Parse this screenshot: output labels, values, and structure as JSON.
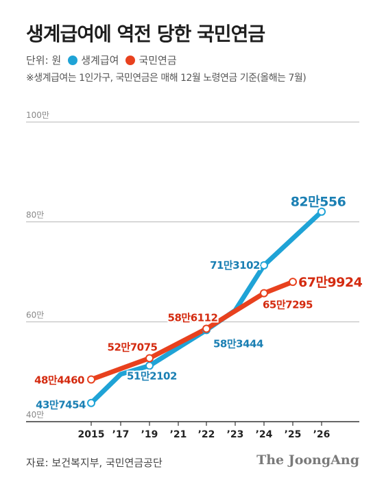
{
  "header": {
    "title": "생계급여에 역전 당한 국민연금",
    "unit_label": "단위: 원",
    "note": "※생계급여는 1인가구, 국민연금은 매해 12월 노령연금 기준(올해는 7월)"
  },
  "footer": {
    "source": "자료: 보건복지부, 국민연금공단",
    "brand": "The JoongAng"
  },
  "chart_data": {
    "type": "line",
    "title": "생계급여에 역전 당한 국민연금",
    "x_labels": [
      "2015",
      "’17",
      "’19",
      "’21",
      "’22",
      "’23",
      "’24",
      "’25",
      "’26"
    ],
    "y_ticks": [
      {
        "value": 400000,
        "label": "40만"
      },
      {
        "value": 600000,
        "label": "60만"
      },
      {
        "value": 800000,
        "label": "80만"
      },
      {
        "value": 1000000,
        "label": "100만"
      }
    ],
    "ylim": [
      400000,
      1000000
    ],
    "grid": true,
    "legend_position": "top-left",
    "series": [
      {
        "name": "생계급여",
        "color": "#1fa3d6",
        "label_color": "#1a7fb3",
        "points": [
          {
            "x": "2015",
            "y": 437454,
            "label": "43만7454"
          },
          {
            "x": "’17",
            "y": 495000
          },
          {
            "x": "’19",
            "y": 512102,
            "label": "51만2102"
          },
          {
            "x": "’22",
            "y": 583444,
            "label": "58만3444"
          },
          {
            "x": "’23",
            "y": 623000
          },
          {
            "x": "’24",
            "y": 713102,
            "label": "71만3102"
          },
          {
            "x": "’26",
            "y": 820556,
            "label": "82만556"
          }
        ]
      },
      {
        "name": "국민연금",
        "color": "#e8411e",
        "label_color": "#d42b10",
        "points": [
          {
            "x": "2015",
            "y": 484460,
            "label": "48만4460"
          },
          {
            "x": "’19",
            "y": 527075,
            "label": "52만7075"
          },
          {
            "x": "’22",
            "y": 586112,
            "label": "58만6112"
          },
          {
            "x": "’24",
            "y": 657295,
            "label": "65만7295"
          },
          {
            "x": "’25",
            "y": 679924,
            "label": "67만9924"
          }
        ]
      }
    ]
  }
}
